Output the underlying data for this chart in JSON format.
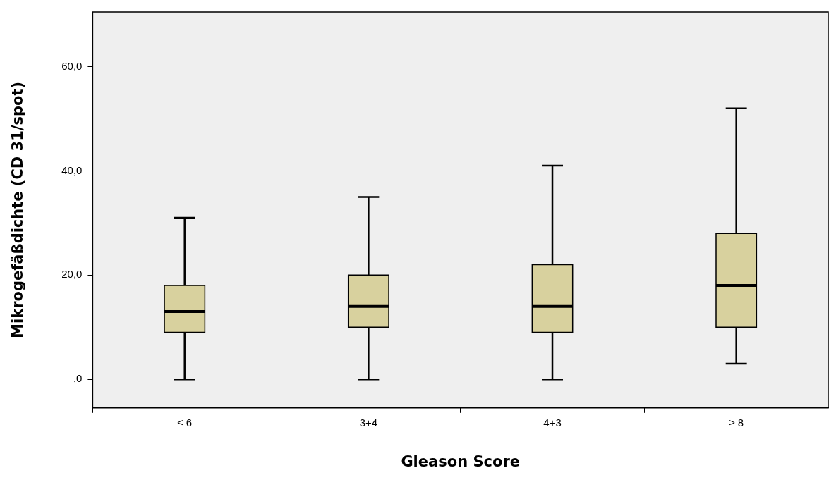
{
  "chart_data": {
    "type": "box",
    "xlabel": "Gleason Score",
    "ylabel": "Mikrogefäßdichte (CD 31/spot)",
    "categories": [
      "≤ 6",
      "3+4",
      "4+3",
      "≥ 8"
    ],
    "series": [
      {
        "color": "#d8d19e",
        "boxes": [
          {
            "low": 0,
            "q1": 9,
            "median": 13,
            "q3": 18,
            "high": 31
          },
          {
            "low": 0,
            "q1": 10,
            "median": 14,
            "q3": 20,
            "high": 35
          },
          {
            "low": 0,
            "q1": 9,
            "median": 14,
            "q3": 22,
            "high": 41
          },
          {
            "low": 3,
            "q1": 10,
            "median": 18,
            "q3": 28,
            "high": 52
          }
        ]
      }
    ],
    "ylim": [
      -5.5,
      70.5
    ],
    "yticks": [
      {
        "value": 0,
        "label": ",0"
      },
      {
        "value": 20,
        "label": "20,0"
      },
      {
        "value": 40,
        "label": "40,0"
      },
      {
        "value": 60,
        "label": "60,0"
      }
    ],
    "grid": false
  }
}
